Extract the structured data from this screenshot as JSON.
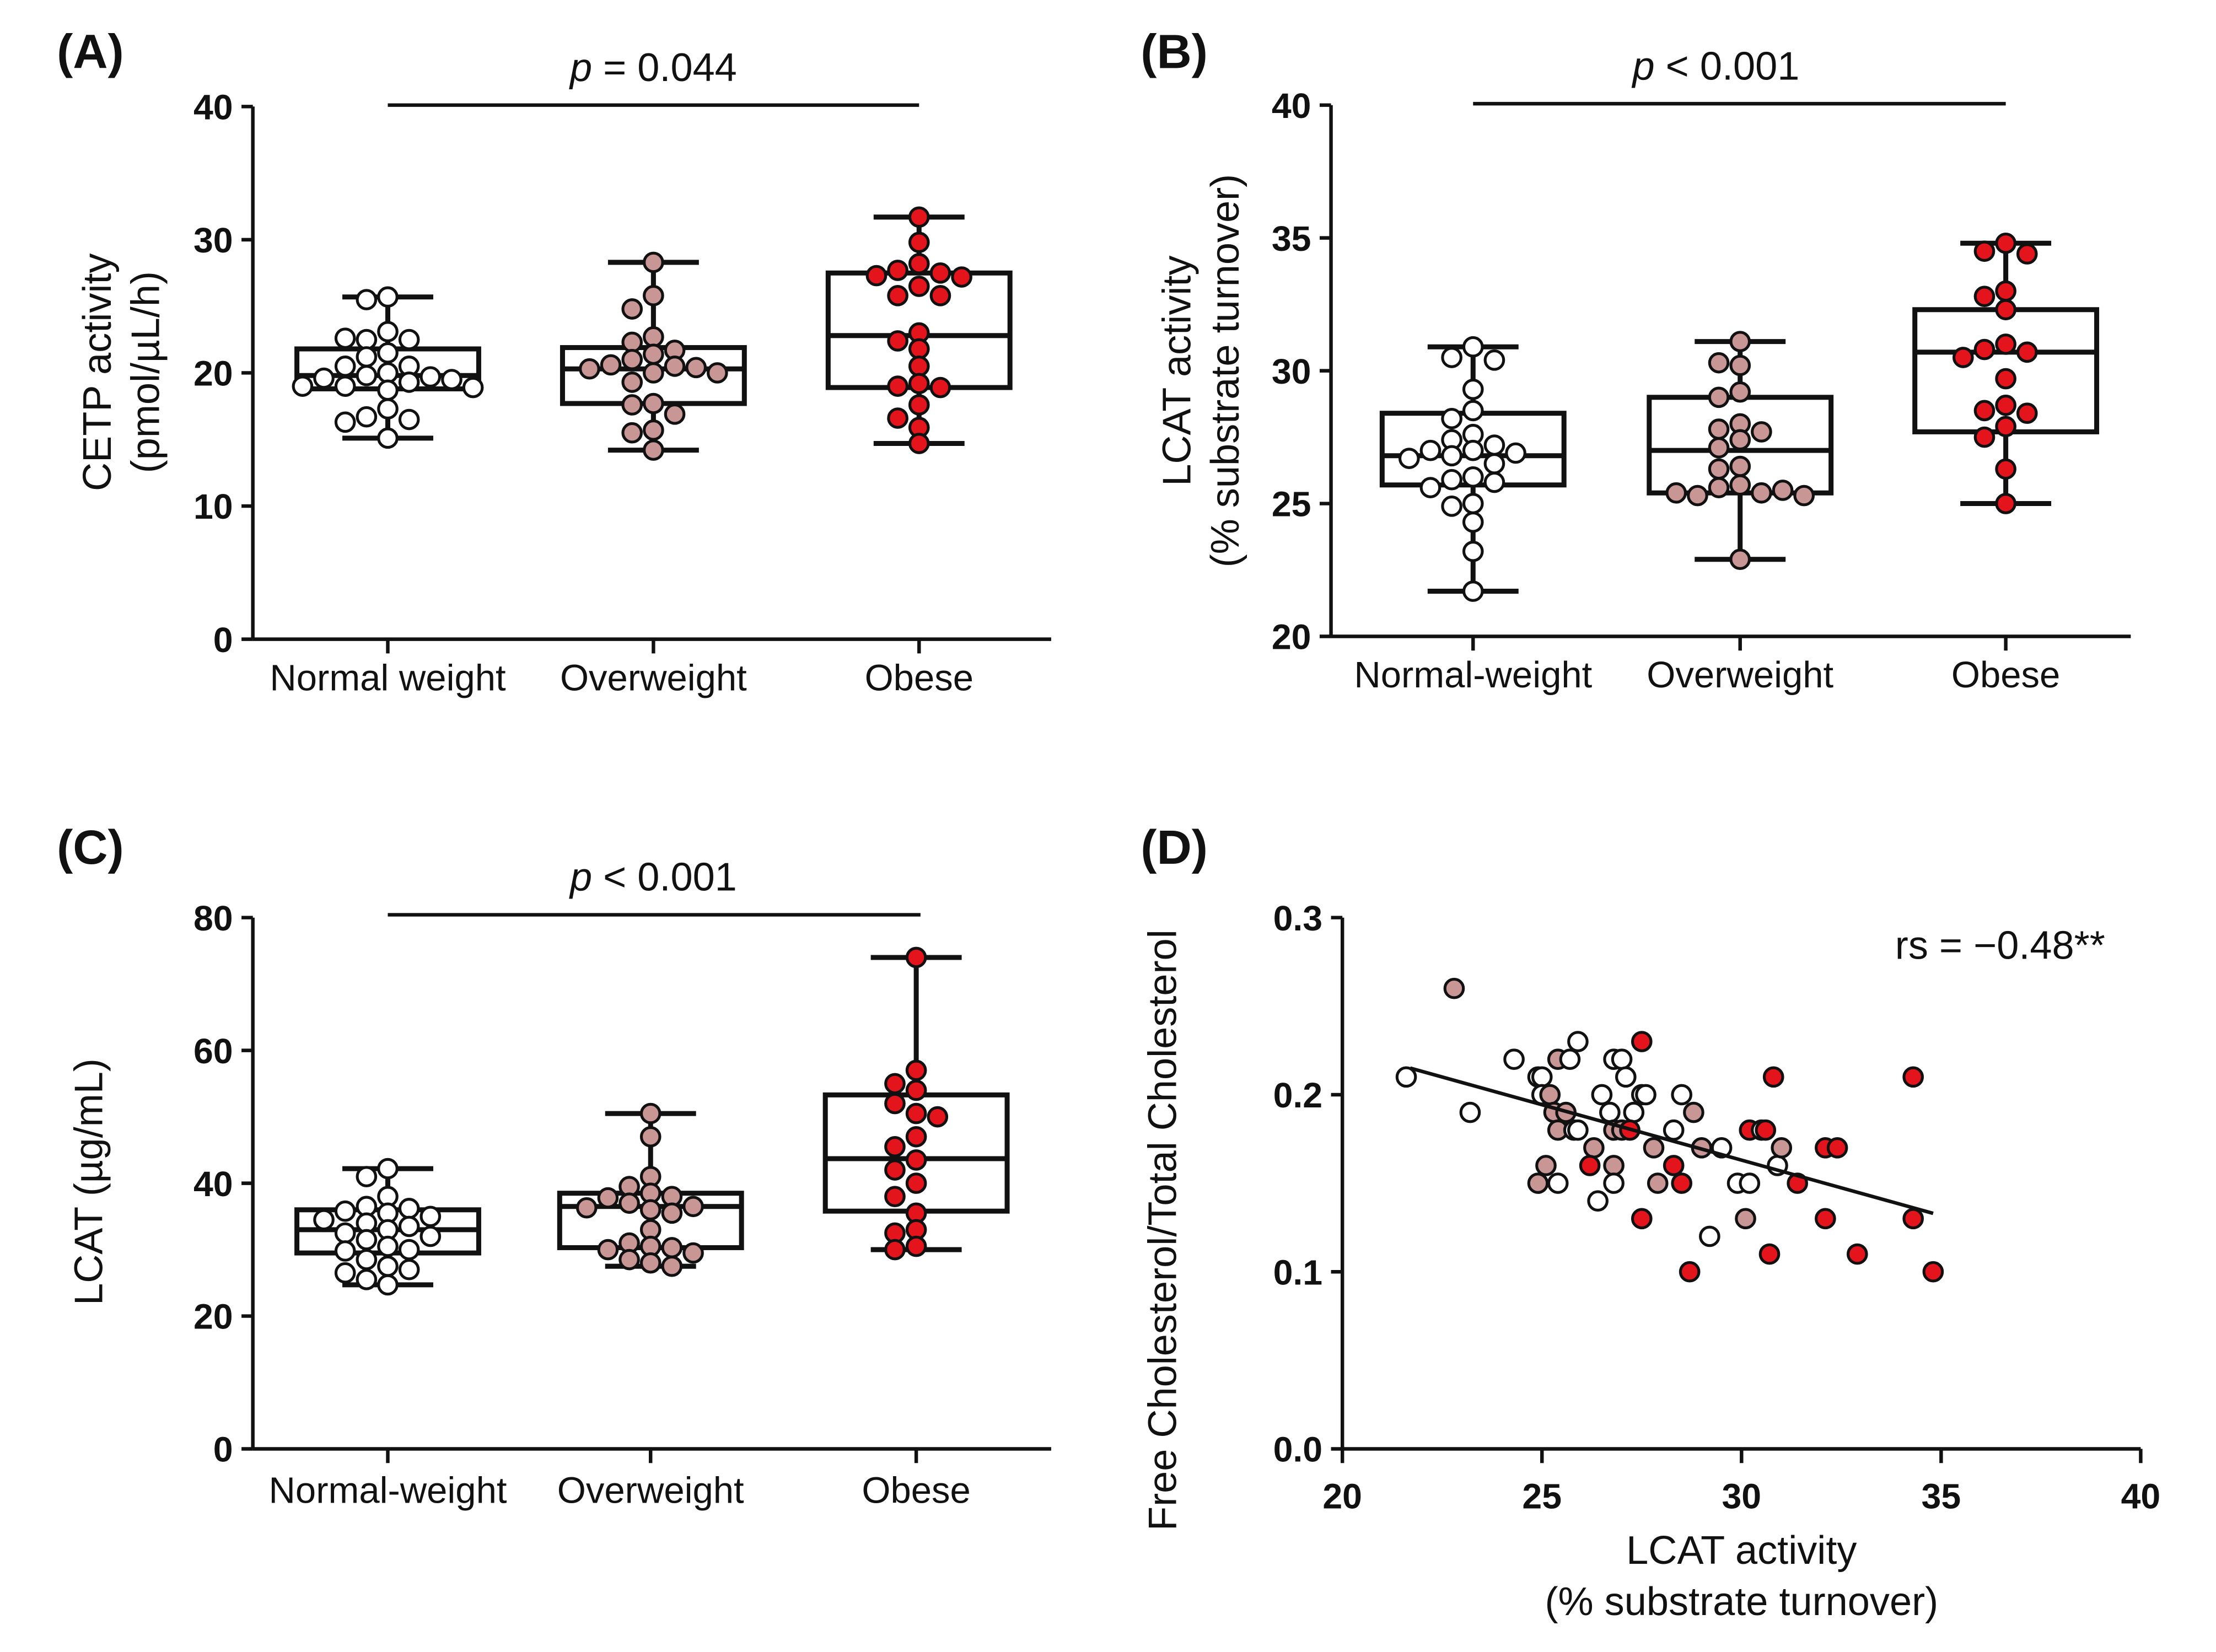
{
  "colors": {
    "normal": "#ffffff",
    "overweight": "#c99696",
    "obese": "#e3141b",
    "stroke": "#111111"
  },
  "chart_data": [
    {
      "panel": "(A)",
      "type": "box",
      "ylabel": [
        "CETP activity",
        "(pmol/µL/h)"
      ],
      "ylim": [
        0,
        40
      ],
      "yticks": [
        0,
        10,
        20,
        30,
        40
      ],
      "categories": [
        "Normal weight",
        "Overweight",
        "Obese"
      ],
      "annotation": "p = 0.044",
      "annotation_italic": "p",
      "annotation_rest": " = 0.044",
      "boxes": [
        {
          "min": 15.1,
          "q1": 18.8,
          "median": 19.8,
          "q3": 21.8,
          "max": 25.7
        },
        {
          "min": 14.2,
          "q1": 17.7,
          "median": 20.3,
          "q3": 21.9,
          "max": 28.3
        },
        {
          "min": 14.7,
          "q1": 18.9,
          "median": 22.8,
          "q3": 27.5,
          "max": 31.7
        }
      ],
      "points": [
        [
          25.7,
          25.5,
          23.1,
          22.5,
          22.5,
          22.6,
          21.5,
          21.2,
          20.5,
          20.5,
          20.0,
          19.8,
          19.7,
          19.6,
          19.5,
          19.3,
          19.0,
          19.0,
          18.9,
          18.7,
          17.3,
          16.7,
          16.5,
          16.3,
          15.1
        ],
        [
          28.3,
          25.8,
          24.8,
          22.7,
          22.3,
          21.7,
          21.4,
          21.0,
          20.6,
          20.5,
          20.4,
          20.3,
          20.0,
          20.0,
          19.3,
          17.7,
          17.6,
          16.9,
          15.7,
          15.5,
          14.2
        ],
        [
          31.7,
          29.8,
          28.2,
          27.7,
          27.5,
          27.3,
          27.2,
          26.5,
          25.8,
          25.8,
          23.0,
          22.4,
          21.8,
          20.5,
          19.2,
          19.0,
          18.9,
          17.6,
          16.6,
          15.9,
          14.7
        ]
      ]
    },
    {
      "panel": "(B)",
      "type": "box",
      "ylabel": [
        "LCAT activity",
        "(% substrate turnover)"
      ],
      "ylim": [
        20,
        40
      ],
      "yticks": [
        20,
        25,
        30,
        35,
        40
      ],
      "categories": [
        "Normal-weight",
        "Overweight",
        "Obese"
      ],
      "annotation": "p < 0.001",
      "annotation_italic": "p",
      "annotation_rest": " < 0.001",
      "boxes": [
        {
          "min": 21.7,
          "q1": 25.7,
          "median": 26.8,
          "q3": 28.4,
          "max": 30.9
        },
        {
          "min": 22.9,
          "q1": 25.4,
          "median": 27.0,
          "q3": 29.0,
          "max": 31.1
        },
        {
          "min": 25.0,
          "q1": 27.7,
          "median": 30.7,
          "q3": 32.3,
          "max": 34.8
        }
      ],
      "points": [
        [
          30.9,
          30.5,
          30.4,
          29.3,
          28.5,
          28.2,
          27.6,
          27.4,
          27.2,
          27.0,
          27.0,
          26.9,
          26.8,
          26.7,
          26.5,
          26.0,
          25.9,
          25.8,
          25.6,
          25.0,
          24.9,
          24.3,
          23.2,
          21.7
        ],
        [
          31.1,
          30.2,
          30.3,
          29.2,
          29.0,
          28.0,
          27.8,
          27.7,
          27.4,
          27.1,
          26.4,
          26.3,
          25.7,
          25.6,
          25.4,
          25.3,
          25.5,
          25.4,
          25.3,
          22.9
        ],
        [
          34.8,
          34.5,
          34.4,
          33.0,
          32.8,
          32.3,
          31.0,
          30.8,
          30.7,
          30.5,
          29.7,
          28.7,
          28.5,
          28.4,
          27.9,
          27.5,
          26.3,
          25.0
        ]
      ]
    },
    {
      "panel": "(C)",
      "type": "box",
      "ylabel": [
        "LCAT (µg/mL)"
      ],
      "ylim": [
        0,
        80
      ],
      "yticks": [
        0,
        20,
        40,
        60,
        80
      ],
      "categories": [
        "Normal-weight",
        "Overweight",
        "Obese"
      ],
      "annotation": "p < 0.001",
      "annotation_italic": "p",
      "annotation_rest": " < 0.001",
      "boxes": [
        {
          "min": 24.7,
          "q1": 29.5,
          "median": 33.0,
          "q3": 36.0,
          "max": 42.2
        },
        {
          "min": 27.5,
          "q1": 30.3,
          "median": 36.5,
          "q3": 38.5,
          "max": 50.5
        },
        {
          "min": 30.0,
          "q1": 35.8,
          "median": 43.7,
          "q3": 53.3,
          "max": 74.0
        }
      ],
      "points": [
        [
          42.2,
          41.0,
          38.0,
          36.5,
          36.2,
          35.8,
          35.5,
          35.0,
          34.5,
          34.0,
          33.5,
          33.0,
          32.5,
          32.0,
          31.5,
          30.5,
          30.0,
          29.8,
          28.5,
          27.5,
          27.0,
          26.5,
          25.5,
          24.7
        ],
        [
          50.5,
          47.0,
          41.0,
          39.5,
          38.5,
          38.0,
          37.8,
          37.0,
          36.5,
          36.3,
          36.0,
          35.5,
          33.0,
          31.0,
          30.5,
          30.3,
          30.0,
          29.5,
          28.5,
          28.0,
          27.5
        ],
        [
          74,
          57,
          55,
          54,
          52,
          50.5,
          50,
          47,
          45.5,
          43.5,
          42,
          40,
          38,
          35.5,
          33,
          32.5,
          30.5,
          30
        ]
      ]
    },
    {
      "panel": "(D)",
      "type": "scatter",
      "ylabel": [
        "Free Cholesterol/Total Cholesterol"
      ],
      "xlabel": [
        "LCAT activity",
        "(% substrate turnover)"
      ],
      "xlim": [
        20,
        40
      ],
      "xticks": [
        20,
        25,
        30,
        35,
        40
      ],
      "ylim": [
        0,
        0.3
      ],
      "yticks": [
        "0.0",
        "0.1",
        "0.2",
        "0.3"
      ],
      "annotation_r": "r",
      "annotation_sub": "s",
      "annotation_rest": " = −0.48**",
      "annotation": "rs = −0.48**",
      "regression": {
        "x": [
          21.7,
          34.8
        ],
        "y": [
          0.215,
          0.133
        ]
      },
      "groups": [
        "Normal weight",
        "Overweight",
        "Obese"
      ],
      "points": [
        [
          21.6,
          0.21,
          0
        ],
        [
          22.8,
          0.26,
          1
        ],
        [
          23.2,
          0.19,
          0
        ],
        [
          24.3,
          0.22,
          0
        ],
        [
          24.9,
          0.21,
          0
        ],
        [
          25.0,
          0.21,
          0
        ],
        [
          25.0,
          0.2,
          0
        ],
        [
          25.2,
          0.2,
          1
        ],
        [
          25.4,
          0.22,
          1
        ],
        [
          25.7,
          0.22,
          0
        ],
        [
          25.9,
          0.23,
          0
        ],
        [
          25.3,
          0.19,
          1
        ],
        [
          25.6,
          0.19,
          1
        ],
        [
          25.4,
          0.18,
          1
        ],
        [
          25.8,
          0.18,
          0
        ],
        [
          25.9,
          0.18,
          0
        ],
        [
          25.1,
          0.16,
          1
        ],
        [
          24.9,
          0.15,
          1
        ],
        [
          25.4,
          0.15,
          0
        ],
        [
          26.3,
          0.17,
          1
        ],
        [
          26.2,
          0.16,
          2
        ],
        [
          26.4,
          0.14,
          0
        ],
        [
          26.5,
          0.2,
          0
        ],
        [
          26.7,
          0.19,
          0
        ],
        [
          27.3,
          0.19,
          0
        ],
        [
          26.8,
          0.22,
          0
        ],
        [
          27.0,
          0.22,
          0
        ],
        [
          27.1,
          0.21,
          0
        ],
        [
          27.5,
          0.2,
          0
        ],
        [
          27.6,
          0.2,
          0
        ],
        [
          26.8,
          0.18,
          1
        ],
        [
          27.0,
          0.18,
          1
        ],
        [
          27.2,
          0.18,
          2
        ],
        [
          26.8,
          0.16,
          1
        ],
        [
          26.8,
          0.15,
          0
        ],
        [
          27.5,
          0.23,
          2
        ],
        [
          27.8,
          0.17,
          1
        ],
        [
          27.9,
          0.15,
          1
        ],
        [
          27.5,
          0.13,
          2
        ],
        [
          28.3,
          0.18,
          0
        ],
        [
          28.5,
          0.2,
          0
        ],
        [
          28.8,
          0.19,
          1
        ],
        [
          28.3,
          0.16,
          2
        ],
        [
          28.5,
          0.15,
          2
        ],
        [
          29.0,
          0.17,
          1
        ],
        [
          29.5,
          0.17,
          0
        ],
        [
          28.7,
          0.1,
          2
        ],
        [
          29.2,
          0.12,
          0
        ],
        [
          29.9,
          0.15,
          0
        ],
        [
          30.2,
          0.15,
          0
        ],
        [
          30.2,
          0.18,
          2
        ],
        [
          30.5,
          0.18,
          0
        ],
        [
          30.6,
          0.18,
          2
        ],
        [
          30.1,
          0.13,
          1
        ],
        [
          30.8,
          0.21,
          2
        ],
        [
          30.7,
          0.11,
          2
        ],
        [
          30.9,
          0.16,
          0
        ],
        [
          31.0,
          0.17,
          1
        ],
        [
          31.4,
          0.15,
          2
        ],
        [
          32.1,
          0.17,
          2
        ],
        [
          32.4,
          0.17,
          2
        ],
        [
          32.1,
          0.13,
          2
        ],
        [
          32.9,
          0.11,
          2
        ],
        [
          34.3,
          0.21,
          2
        ],
        [
          34.3,
          0.13,
          2
        ],
        [
          34.8,
          0.1,
          2
        ]
      ]
    }
  ]
}
